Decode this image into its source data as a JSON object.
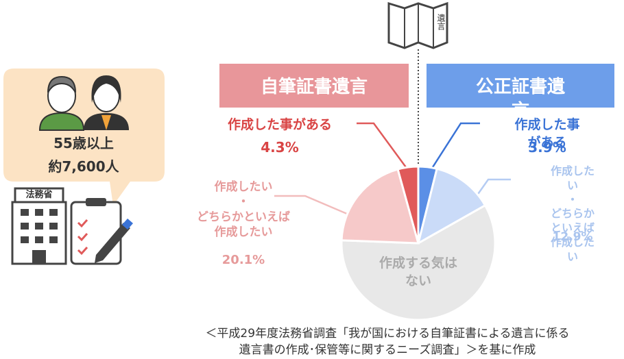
{
  "chart_data": {
    "type": "pie",
    "categories": [
      "作成した事がある",
      "作成したい\n・\nどちらかといえば\n作成したい",
      "作成する気は\nない",
      "作成したい\n・\nどちらかといえば\n作成したい",
      "作成した事がある"
    ],
    "values": [
      3.9,
      12.9,
      58.8,
      20.1,
      4.3
    ],
    "value_labels": [
      "3.9%",
      "12.9%",
      null,
      "20.1%",
      "4.3%"
    ],
    "colors": [
      "#5b8fe6",
      "#cadbf8",
      "#e8e8e8",
      "#f6c9c9",
      "#e05a5a"
    ]
  },
  "headers": [
    "自筆証書遺言",
    "公正証書遺言"
  ],
  "document_label": "遺言",
  "panel": {
    "lines": [
      "55歳以上",
      "約7,600人"
    ],
    "building_label": "法務省"
  },
  "source": [
    "＜平成29年度法務省調査「我が国における自筆証書による遺言に係る",
    "遺言書の作成･保管等に関するニーズ調査」＞を基に作成"
  ]
}
